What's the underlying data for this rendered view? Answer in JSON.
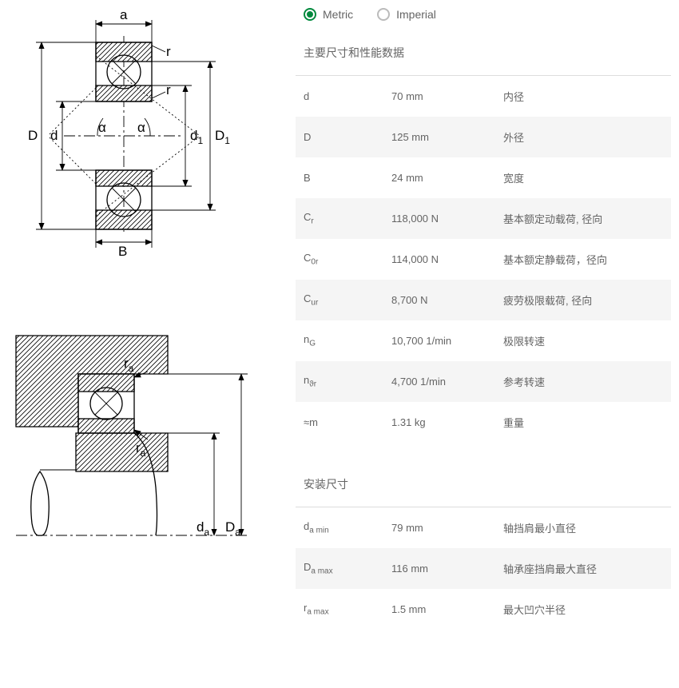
{
  "units": {
    "metric": "Metric",
    "imperial": "Imperial",
    "selected": "metric"
  },
  "sections": [
    {
      "title": "主要尺寸和性能数据",
      "rows": [
        {
          "symbol": "d",
          "sub": "",
          "value": "70 mm",
          "desc": "内径"
        },
        {
          "symbol": "D",
          "sub": "",
          "value": "125 mm",
          "desc": "外径"
        },
        {
          "symbol": "B",
          "sub": "",
          "value": "24 mm",
          "desc": "宽度"
        },
        {
          "symbol": "C",
          "sub": "r",
          "value": "118,000 N",
          "desc": "基本额定动载荷, 径向"
        },
        {
          "symbol": "C",
          "sub": "0r",
          "value": "114,000 N",
          "desc": "基本额定静载荷，径向"
        },
        {
          "symbol": "C",
          "sub": "ur",
          "value": "8,700 N",
          "desc": "疲劳极限载荷, 径向"
        },
        {
          "symbol": "n",
          "sub": "G",
          "value": "10,700 1/min",
          "desc": "极限转速"
        },
        {
          "symbol": "n",
          "sub": "ϑr",
          "value": "4,700 1/min",
          "desc": "参考转速"
        },
        {
          "symbol": "≈m",
          "sub": "",
          "value": "1.31 kg",
          "desc": "重量"
        }
      ]
    },
    {
      "title": "安装尺寸",
      "rows": [
        {
          "symbol": "d",
          "sub": "a min",
          "value": "79 mm",
          "desc": "轴挡肩最小直径"
        },
        {
          "symbol": "D",
          "sub": "a max",
          "value": "116 mm",
          "desc": "轴承座挡肩最大直径"
        },
        {
          "symbol": "r",
          "sub": "a max",
          "value": "1.5 mm",
          "desc": "最大凹穴半径"
        }
      ]
    }
  ],
  "diagram1_labels": {
    "a": "a",
    "r": "r",
    "D": "D",
    "d": "d",
    "alpha": "α",
    "d1": "d",
    "d1sub": "1",
    "D1": "D",
    "D1sub": "1",
    "B": "B"
  },
  "diagram2_labels": {
    "ra": "r",
    "rasub": "a",
    "da": "d",
    "dasub": "a",
    "Da": "D",
    "Dasub": "a"
  },
  "colors": {
    "accent": "#00893d",
    "text": "#646464",
    "row_alt": "#f5f5f5",
    "border": "#dddddd"
  }
}
